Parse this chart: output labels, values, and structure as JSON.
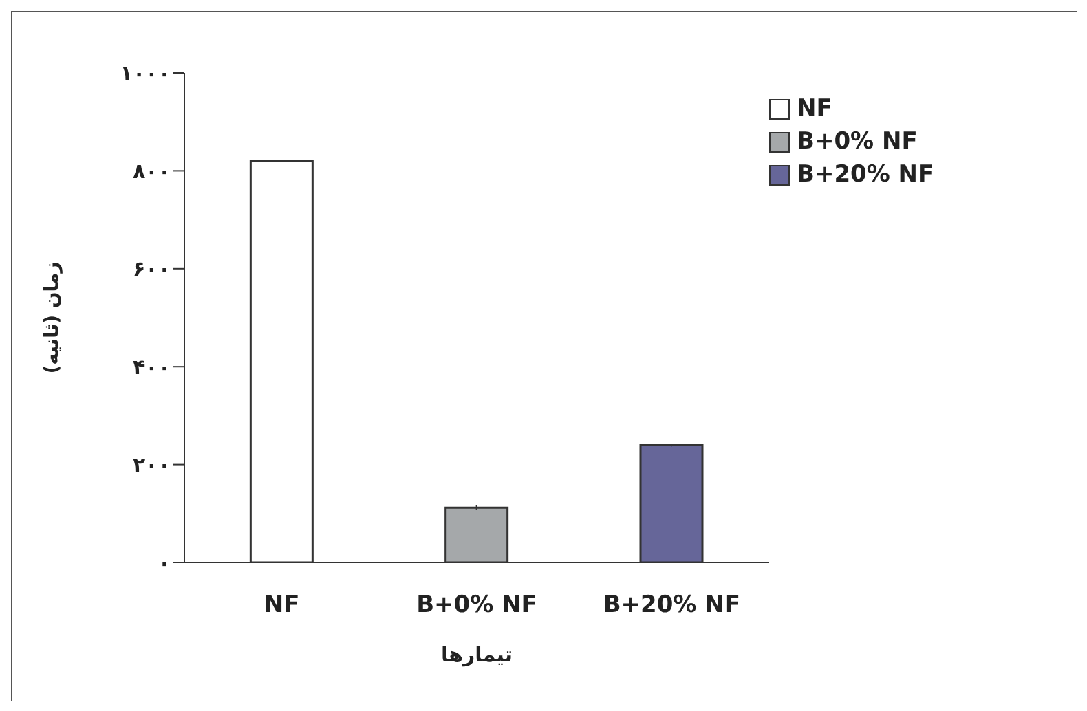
{
  "chart_data": {
    "type": "bar",
    "xlabel": "تیمارها",
    "ylabel": "زمان (ثانیه)",
    "categories": [
      "NF",
      "B+0% NF",
      "B+20% NF"
    ],
    "stacked": true,
    "series": [
      {
        "name": "NF",
        "color": "#ffffff",
        "values": [
          820,
          null,
          null
        ]
      },
      {
        "name": "B+0% NF",
        "color": "#a5a8aa",
        "values": [
          null,
          112,
          null
        ],
        "errors": [
          null,
          5,
          null
        ]
      },
      {
        "name": "B+20% NF",
        "color": "#666699",
        "values": [
          null,
          null,
          240
        ],
        "errors": [
          null,
          null,
          3
        ]
      }
    ],
    "ylim": [
      0,
      1000
    ],
    "yticks": [
      {
        "value": 0,
        "label": "۰"
      },
      {
        "value": 200,
        "label": "۲۰۰"
      },
      {
        "value": 400,
        "label": "۴۰۰"
      },
      {
        "value": 600,
        "label": "۶۰۰"
      },
      {
        "value": 800,
        "label": "۸۰۰"
      },
      {
        "value": 1000,
        "label": "۱۰۰۰"
      }
    ],
    "grid": false,
    "legend": "top right"
  }
}
